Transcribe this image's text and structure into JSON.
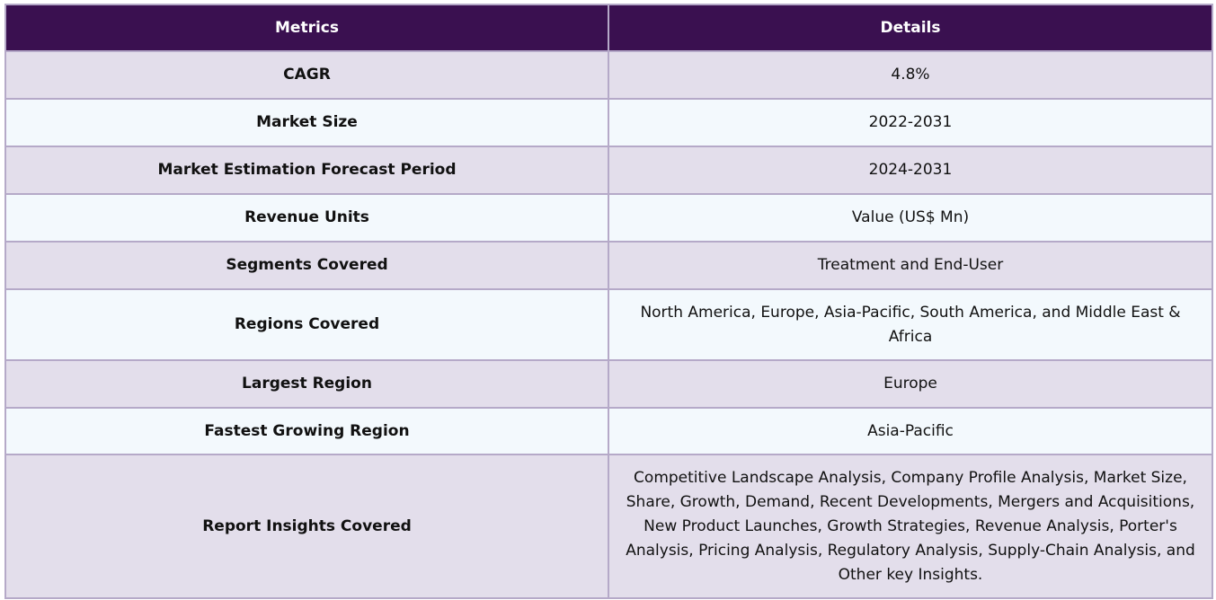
{
  "table": {
    "headers": [
      "Metrics",
      "Details"
    ],
    "rows": [
      {
        "metric": "CAGR",
        "detail": "4.8%"
      },
      {
        "metric": "Market Size",
        "detail": "2022-2031"
      },
      {
        "metric": "Market Estimation Forecast Period",
        "detail": "2024-2031"
      },
      {
        "metric": "Revenue Units",
        "detail": "Value (US$ Mn)"
      },
      {
        "metric": "Segments Covered",
        "detail": "Treatment and End-User"
      },
      {
        "metric": "Regions Covered",
        "detail": "North America, Europe, Asia-Pacific, South America, and Middle East & Africa"
      },
      {
        "metric": "Largest Region",
        "detail": "Europe"
      },
      {
        "metric": "Fastest Growing Region",
        "detail": "Asia-Pacific"
      },
      {
        "metric": "Report Insights Covered",
        "detail": "Competitive Landscape Analysis, Company Profile Analysis, Market Size, Share, Growth, Demand, Recent Developments, Mergers and Acquisitions, New Product Launches, Growth Strategies, Revenue Analysis, Porter's Analysis, Pricing Analysis, Regulatory Analysis, Supply-Chain Analysis, and Other key Insights."
      }
    ]
  },
  "colors": {
    "header_bg": "#3a1050",
    "header_text": "#ffffff",
    "row_odd_bg": "#e3deeb",
    "row_even_bg": "#f3f9fd",
    "border": "#b5a9c8"
  }
}
